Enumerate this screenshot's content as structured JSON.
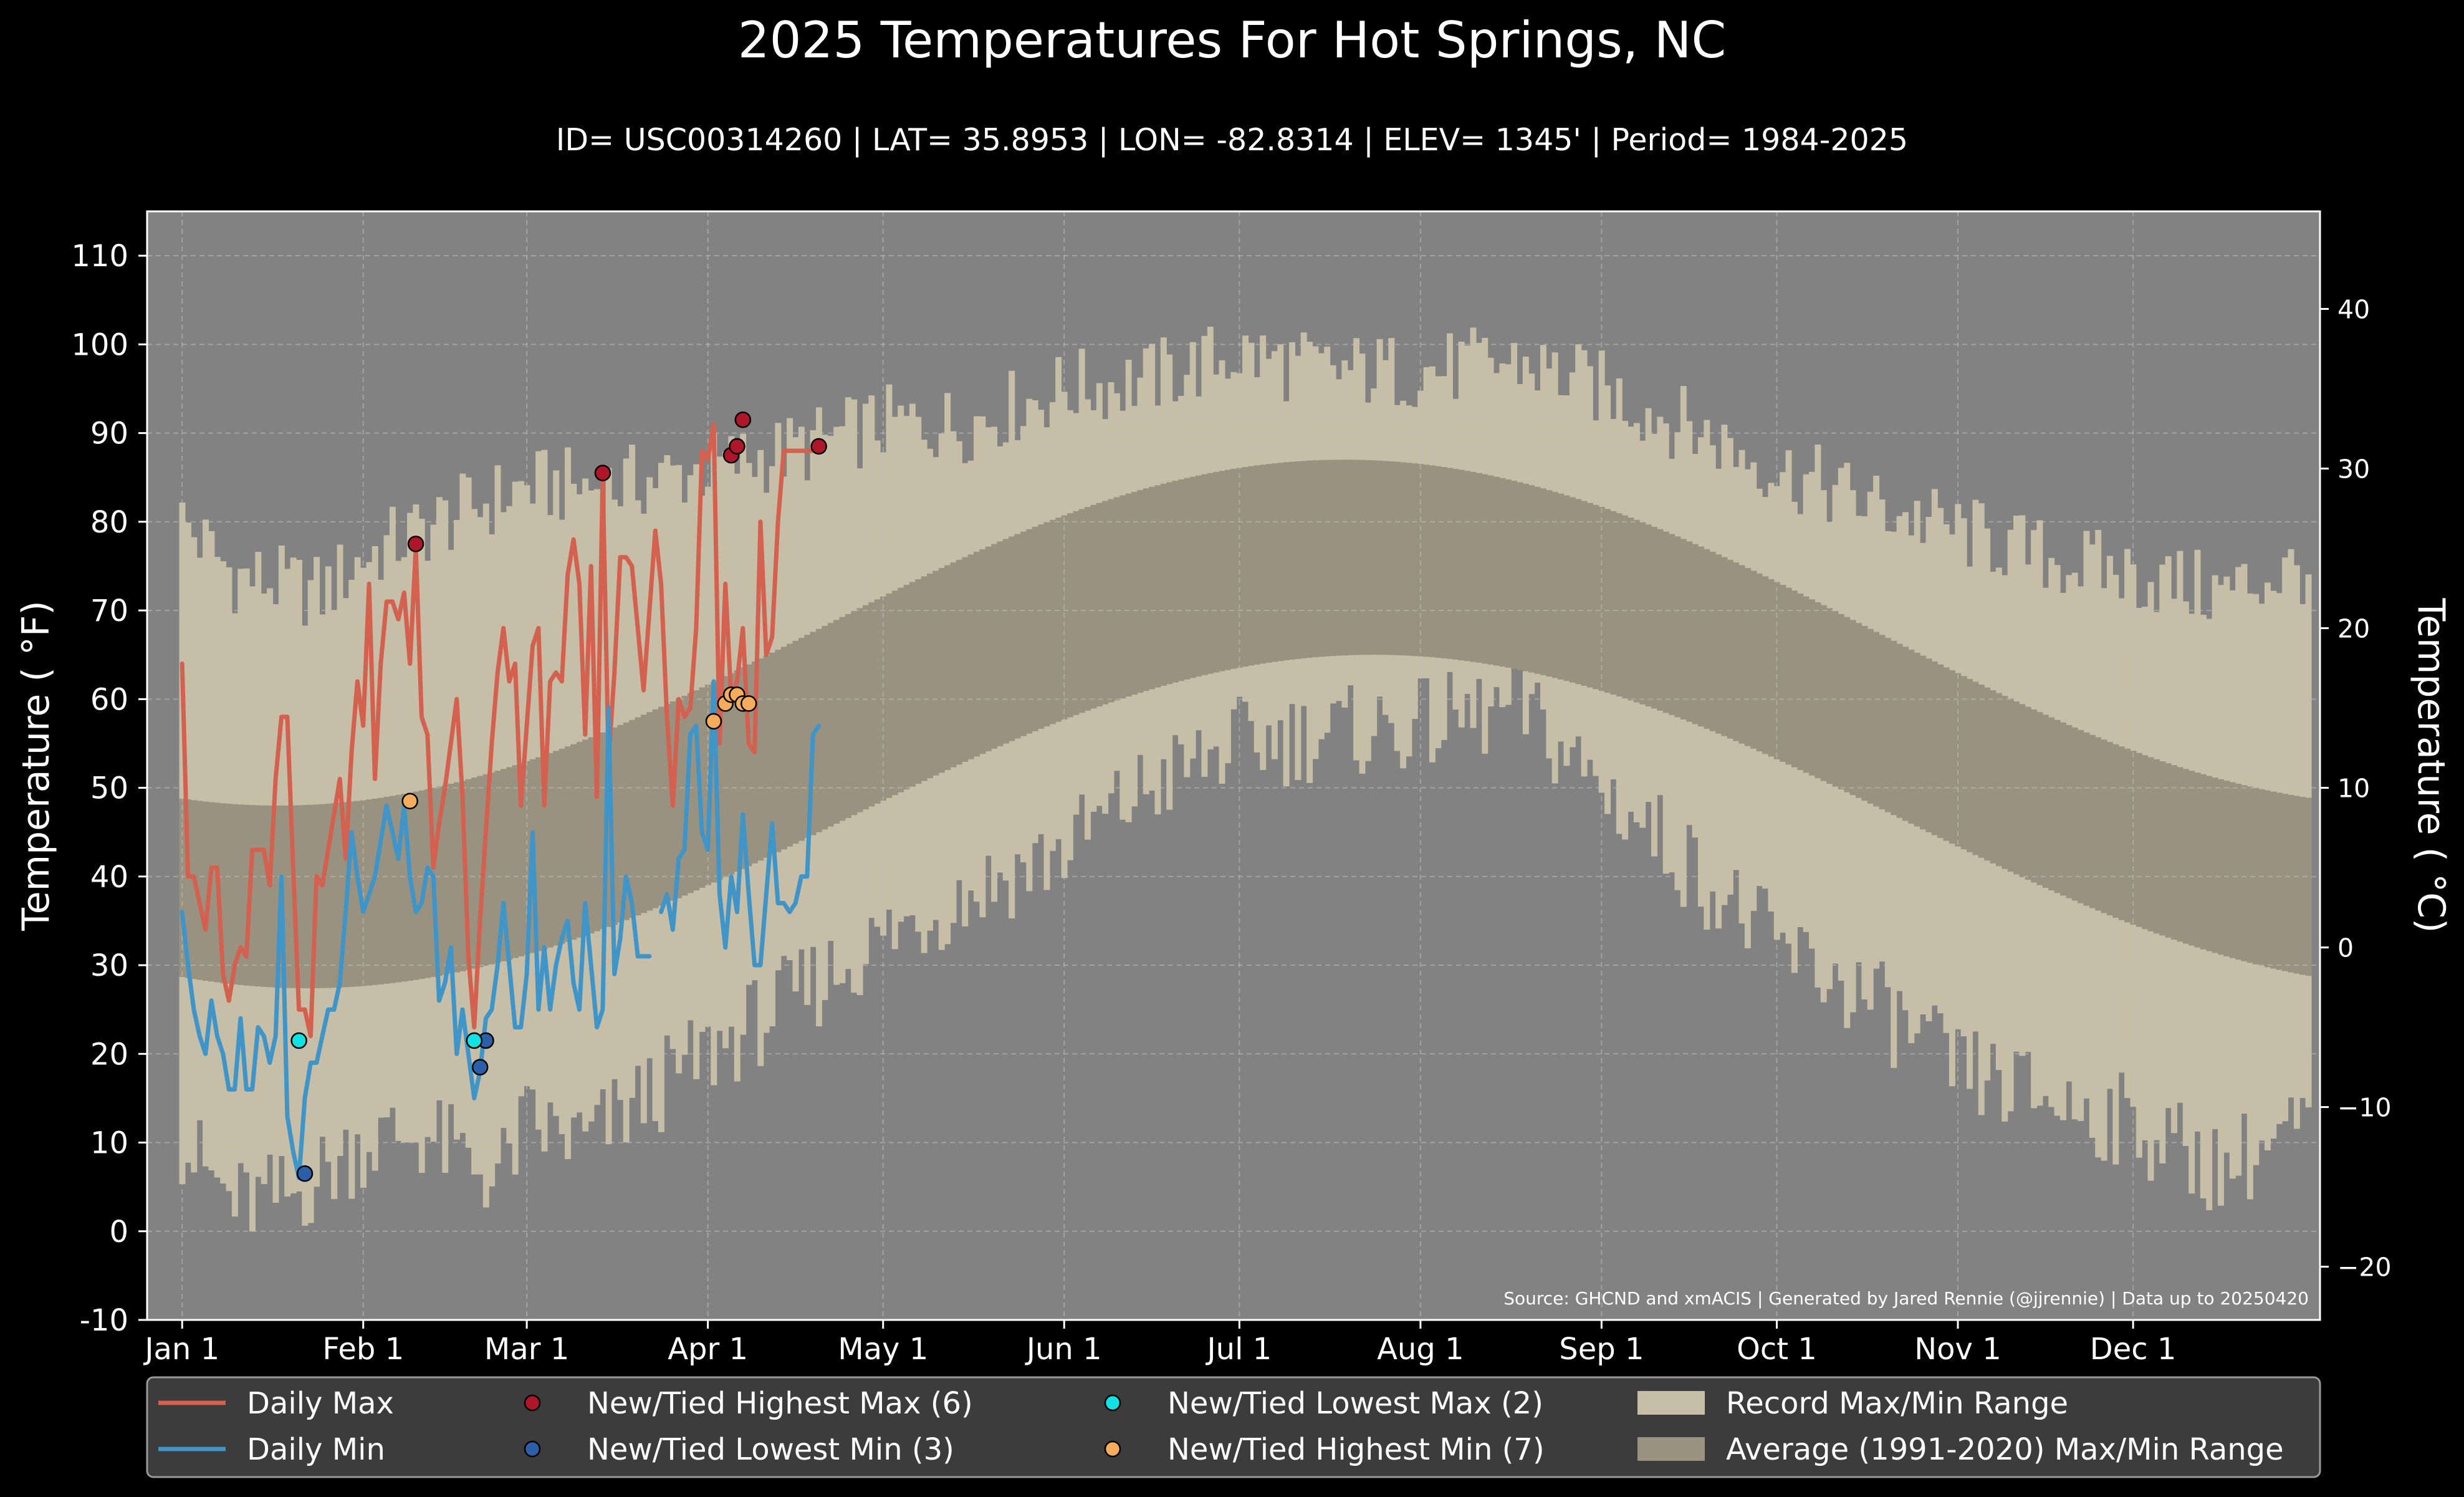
{
  "chart_data": {
    "type": "line",
    "title": "2025 Temperatures For Hot Springs, NC",
    "subtitle": "ID= USC00314260 | LAT= 35.8953 | LON= -82.8314 | ELEV= 1345' | Period= 1984-2025",
    "ylabel": "Temperature ( $^{\\circ}$F)",
    "ylabel_display": "Temperature ( °F)",
    "ylabel_right": "Temperature ( °C)",
    "ylim": [
      -10,
      115
    ],
    "yticks": [
      -10,
      0,
      10,
      20,
      30,
      40,
      50,
      60,
      70,
      80,
      90,
      100,
      110
    ],
    "yticks_right": [
      -20,
      -10,
      0,
      10,
      20,
      30,
      40
    ],
    "xlim_day": [
      -5,
      367
    ],
    "xticks": [
      {
        "label": "Jan 1",
        "day": 1
      },
      {
        "label": "Feb 1",
        "day": 32
      },
      {
        "label": "Mar 1",
        "day": 60
      },
      {
        "label": "Apr 1",
        "day": 91
      },
      {
        "label": "May 1",
        "day": 121
      },
      {
        "label": "Jun 1",
        "day": 152
      },
      {
        "label": "Jul 1",
        "day": 182
      },
      {
        "label": "Aug 1",
        "day": 213
      },
      {
        "label": "Sep 1",
        "day": 244
      },
      {
        "label": "Oct 1",
        "day": 274
      },
      {
        "label": "Nov 1",
        "day": 305
      },
      {
        "label": "Dec 1",
        "day": 335
      }
    ],
    "grid": true,
    "source": "Source: GHCND and xmACIS | Generated by Jared Rennie (@jjrennie) | Data up to 20250420",
    "colors": {
      "background": "#000000",
      "plot_bg": "#828282",
      "record_range": "#c6bea6",
      "average_range": "#9a9280",
      "daily_max": "#d4604f",
      "daily_min": "#3f94c8",
      "new_high_max": "#b0162a",
      "new_low_min": "#2c5faa",
      "new_low_max": "#10e2e4",
      "new_high_min": "#f6ac5d",
      "legend_bg": "#3c3c3c"
    },
    "record_max_anchors": [
      [
        1,
        80
      ],
      [
        10,
        74
      ],
      [
        25,
        72
      ],
      [
        32,
        76
      ],
      [
        45,
        80
      ],
      [
        60,
        84
      ],
      [
        75,
        84
      ],
      [
        91,
        86
      ],
      [
        105,
        88
      ],
      [
        121,
        91
      ],
      [
        135,
        91
      ],
      [
        152,
        95
      ],
      [
        166,
        96
      ],
      [
        182,
        99
      ],
      [
        196,
        97
      ],
      [
        213,
        97
      ],
      [
        230,
        98
      ],
      [
        244,
        95
      ],
      [
        258,
        91
      ],
      [
        274,
        86
      ],
      [
        290,
        82
      ],
      [
        305,
        79
      ],
      [
        320,
        76
      ],
      [
        335,
        74
      ],
      [
        350,
        72
      ],
      [
        365,
        75
      ]
    ],
    "record_min_anchors": [
      [
        1,
        10
      ],
      [
        10,
        3
      ],
      [
        20,
        4
      ],
      [
        32,
        10
      ],
      [
        42,
        11
      ],
      [
        55,
        6
      ],
      [
        60,
        12
      ],
      [
        70,
        10
      ],
      [
        80,
        15
      ],
      [
        91,
        20
      ],
      [
        105,
        26
      ],
      [
        121,
        33
      ],
      [
        135,
        38
      ],
      [
        152,
        43
      ],
      [
        166,
        50
      ],
      [
        182,
        55
      ],
      [
        196,
        56
      ],
      [
        213,
        57
      ],
      [
        230,
        59
      ],
      [
        244,
        50
      ],
      [
        258,
        42
      ],
      [
        274,
        32
      ],
      [
        290,
        26
      ],
      [
        305,
        18
      ],
      [
        320,
        15
      ],
      [
        335,
        12
      ],
      [
        350,
        7
      ],
      [
        365,
        12
      ]
    ],
    "avg_max": {
      "mean": 67.5,
      "amp": 19.5,
      "peak_day": 200
    },
    "avg_min": {
      "mean": 46.2,
      "amp": 18.8,
      "peak_day": 205
    },
    "series": [
      {
        "name": "Daily Max",
        "days": [
          1,
          2,
          3,
          4,
          5,
          6,
          7,
          8,
          9,
          10,
          11,
          12,
          13,
          14,
          15,
          16,
          17,
          18,
          19,
          20,
          21,
          22,
          23,
          24,
          25,
          26,
          27,
          28,
          29,
          30,
          31,
          32,
          33,
          34,
          35,
          36,
          37,
          38,
          39,
          40,
          41,
          42,
          43,
          44,
          45,
          46,
          47,
          48,
          49,
          50,
          51,
          52,
          53,
          54,
          55,
          56,
          57,
          58,
          59,
          60,
          61,
          62,
          63,
          64,
          65,
          66,
          67,
          68,
          69,
          70,
          71,
          72,
          73,
          74,
          75,
          76,
          77,
          78,
          79,
          80,
          81,
          82,
          83,
          84,
          85,
          86,
          87,
          88,
          89,
          90,
          91,
          92,
          93,
          94,
          95,
          96,
          97,
          98,
          99,
          100,
          101,
          102,
          103,
          104,
          105,
          106,
          107,
          108,
          109,
          110
        ],
        "values": [
          64,
          40,
          40,
          37,
          34,
          41,
          41,
          29,
          26,
          30,
          32,
          31,
          43,
          43,
          43,
          39,
          51,
          58,
          58,
          41,
          25,
          25,
          22,
          40,
          39,
          43,
          47,
          51,
          42,
          54,
          62,
          57,
          73,
          51,
          64,
          71,
          71,
          69,
          72,
          64,
          77,
          58,
          56,
          41,
          46,
          50,
          55,
          60,
          49,
          31,
          23,
          35,
          45,
          55,
          63,
          68,
          62,
          64,
          48,
          57,
          66,
          68,
          48,
          62,
          63,
          62,
          74,
          78,
          73,
          56,
          75,
          49,
          85,
          53,
          63,
          76,
          76,
          75,
          68,
          61,
          70,
          79,
          73,
          58,
          48,
          60,
          58,
          59,
          68,
          88,
          87,
          91,
          55,
          73,
          60,
          62,
          68,
          55,
          54,
          80,
          65,
          67,
          80,
          88,
          88,
          88,
          88,
          88,
          88,
          88
        ]
      },
      {
        "name": "Daily Min",
        "days": [
          1,
          2,
          3,
          4,
          5,
          6,
          7,
          8,
          9,
          10,
          11,
          12,
          13,
          14,
          15,
          16,
          17,
          18,
          19,
          20,
          21,
          22,
          23,
          24,
          25,
          26,
          27,
          28,
          29,
          30,
          31,
          32,
          33,
          34,
          35,
          36,
          37,
          38,
          39,
          40,
          41,
          42,
          43,
          44,
          45,
          46,
          47,
          48,
          49,
          50,
          51,
          52,
          53,
          54,
          55,
          56,
          57,
          58,
          59,
          60,
          61,
          62,
          63,
          64,
          65,
          66,
          67,
          68,
          69,
          70,
          71,
          72,
          73,
          74,
          75,
          76,
          77,
          78,
          79,
          80,
          81,
          82,
          83,
          84,
          85,
          86,
          87,
          88,
          89,
          90,
          91,
          92,
          93,
          94,
          95,
          96,
          97,
          98,
          99,
          100,
          101,
          102,
          103,
          104,
          105,
          106,
          107,
          108,
          109,
          110
        ],
        "values": [
          36,
          30,
          25,
          22,
          20,
          26,
          22,
          20,
          16,
          16,
          24,
          16,
          16,
          23,
          22,
          19,
          22,
          40,
          13,
          9,
          6,
          15,
          19,
          19,
          22,
          25,
          25,
          28,
          36,
          45,
          40,
          36,
          38,
          40,
          44,
          48,
          45,
          42,
          48,
          40,
          36,
          37,
          41,
          40,
          26,
          28,
          32,
          20,
          25,
          20,
          15,
          18,
          24,
          25,
          30,
          37,
          30,
          23,
          23,
          29,
          45,
          25,
          32,
          25,
          30,
          33,
          35,
          28,
          25,
          37,
          30,
          23,
          25,
          59,
          29,
          33,
          40,
          37,
          31,
          31,
          31,
          null,
          36,
          38,
          34,
          42,
          43,
          56,
          57,
          45,
          43,
          62,
          38,
          32,
          40,
          36,
          47,
          38,
          30,
          30,
          38,
          46,
          37,
          37,
          36,
          37,
          40,
          40,
          56,
          57
        ]
      }
    ],
    "legend": [
      {
        "label": "Daily Max",
        "kind": "line",
        "color": "#d4604f"
      },
      {
        "label": "Daily Min",
        "kind": "line",
        "color": "#3f94c8"
      },
      {
        "label": "New/Tied Highest Max (6)",
        "kind": "dot",
        "color": "#b0162a"
      },
      {
        "label": "New/Tied Lowest Min (3)",
        "kind": "dot",
        "color": "#2c5faa"
      },
      {
        "label": "New/Tied Lowest Max (2)",
        "kind": "dot",
        "color": "#10e2e4"
      },
      {
        "label": "New/Tied Highest Min (7)",
        "kind": "dot",
        "color": "#f6ac5d"
      },
      {
        "label": "Record Max/Min Range",
        "kind": "patch",
        "color": "#c6bea6"
      },
      {
        "label": "Average (1991-2020) Max/Min Range",
        "kind": "patch",
        "color": "#9a9280"
      }
    ],
    "legend_location": "bottom",
    "record_points": [
      {
        "set": "new_high_max",
        "day": 41,
        "value": 77.5
      },
      {
        "set": "new_high_max",
        "day": 73,
        "value": 85.5
      },
      {
        "set": "new_high_max",
        "day": 95,
        "value": 87.5
      },
      {
        "set": "new_high_max",
        "day": 96,
        "value": 88.5
      },
      {
        "set": "new_high_max",
        "day": 97,
        "value": 91.5
      },
      {
        "set": "new_high_max",
        "day": 110,
        "value": 88.5
      },
      {
        "set": "new_low_min",
        "day": 22,
        "value": 6.5
      },
      {
        "set": "new_low_min",
        "day": 52,
        "value": 18.5
      },
      {
        "set": "new_low_min",
        "day": 53,
        "value": 21.5
      },
      {
        "set": "new_low_max",
        "day": 21,
        "value": 21.5
      },
      {
        "set": "new_low_max",
        "day": 51,
        "value": 21.5
      },
      {
        "set": "new_high_min",
        "day": 40,
        "value": 48.5
      },
      {
        "set": "new_high_min",
        "day": 92,
        "value": 57.5
      },
      {
        "set": "new_high_min",
        "day": 94,
        "value": 59.5
      },
      {
        "set": "new_high_min",
        "day": 95,
        "value": 60.5
      },
      {
        "set": "new_high_min",
        "day": 96,
        "value": 60.5
      },
      {
        "set": "new_high_min",
        "day": 97,
        "value": 59.5
      },
      {
        "set": "new_high_min",
        "day": 98,
        "value": 59.5
      }
    ]
  }
}
